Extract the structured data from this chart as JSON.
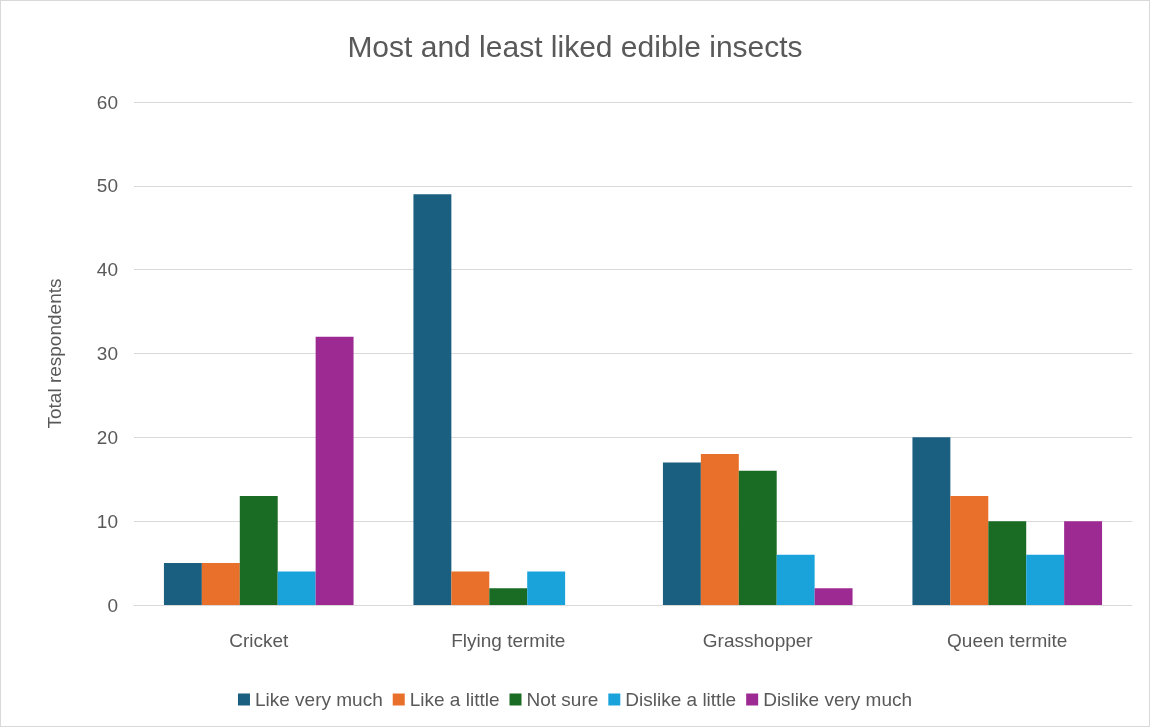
{
  "chart_data": {
    "type": "bar",
    "title": "Most and least liked edible insects",
    "ylabel": "Total respondents",
    "categories": [
      "Cricket",
      "Flying termite",
      "Grasshopper",
      "Queen termite"
    ],
    "series": [
      {
        "name": "Like very much",
        "color": "#1a5e80",
        "values": [
          5,
          49,
          17,
          20
        ]
      },
      {
        "name": "Like a little",
        "color": "#e8702a",
        "values": [
          5,
          4,
          18,
          13
        ]
      },
      {
        "name": "Not sure",
        "color": "#1a6b24",
        "values": [
          13,
          2,
          16,
          10
        ]
      },
      {
        "name": "Dislike a little",
        "color": "#1aa3db",
        "values": [
          4,
          4,
          6,
          6
        ]
      },
      {
        "name": "Dislike very much",
        "color": "#9c2a92",
        "values": [
          32,
          0,
          2,
          10
        ]
      }
    ],
    "ylim": [
      0,
      60
    ],
    "yticks": [
      0,
      10,
      20,
      30,
      40,
      50,
      60
    ],
    "grid": "y",
    "legend": "bottom"
  }
}
